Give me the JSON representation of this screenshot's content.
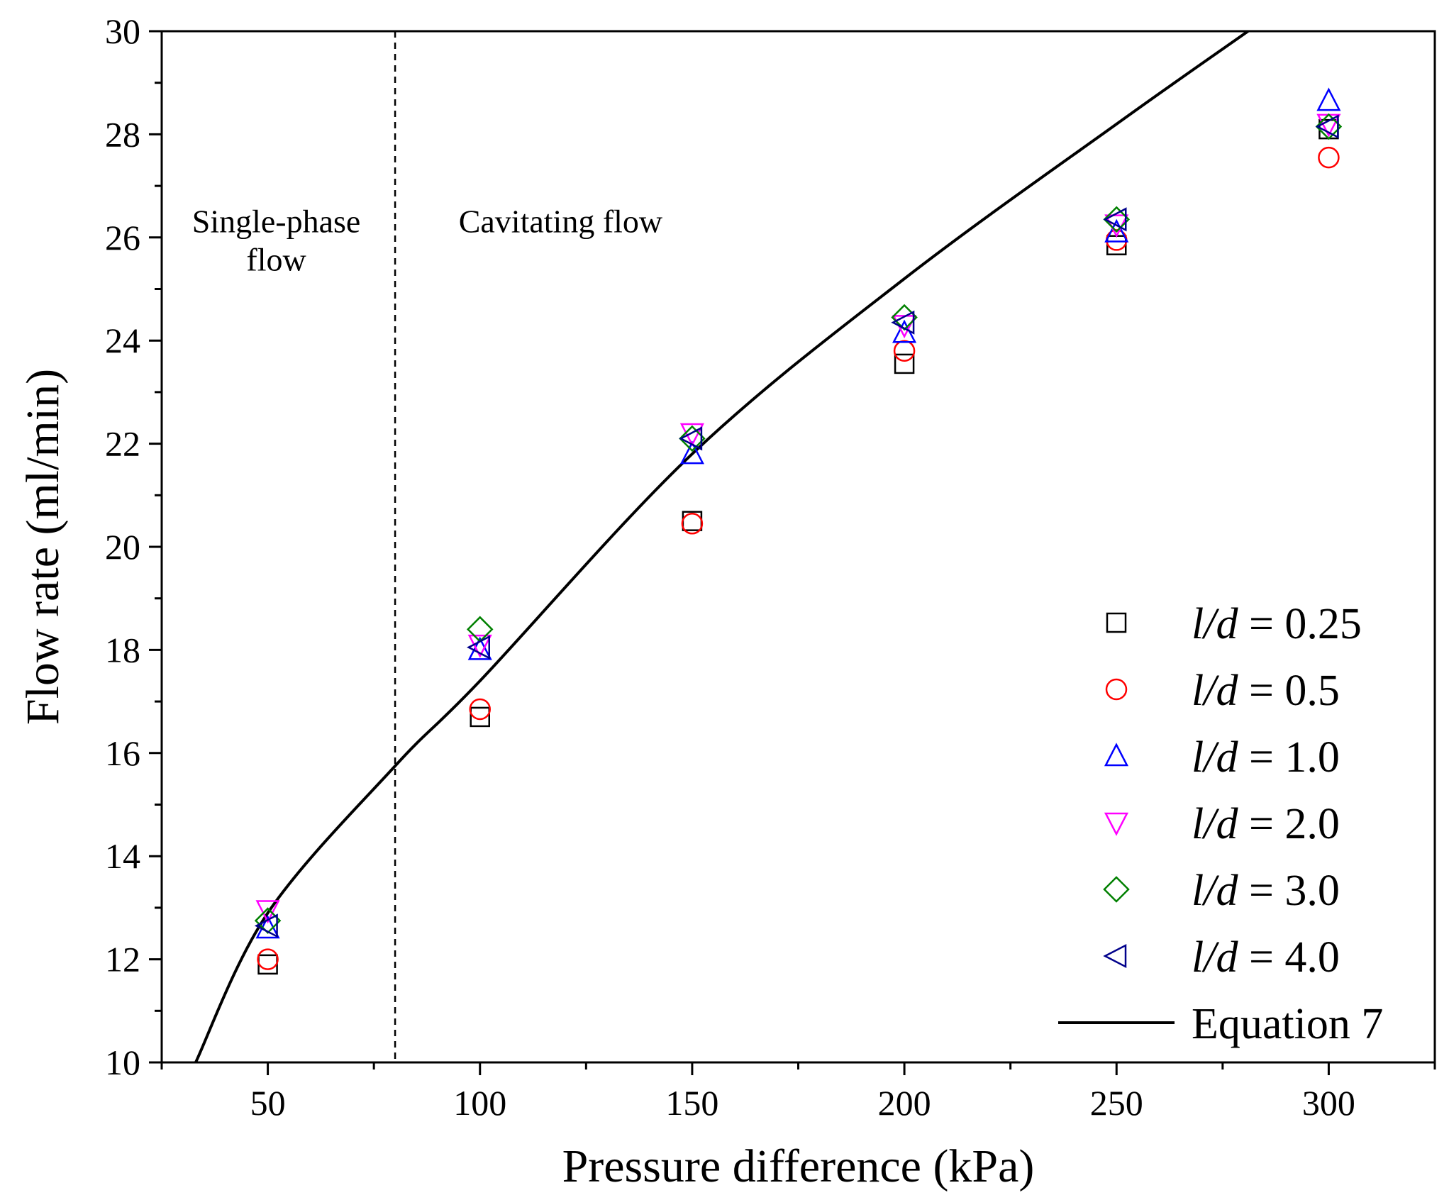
{
  "chart_data": {
    "type": "scatter",
    "title": "",
    "xlabel": "Pressure difference (kPa)",
    "ylabel": "Flow rate (ml/min)",
    "xlim": [
      25,
      325
    ],
    "ylim": [
      10,
      30
    ],
    "xticks": [
      50,
      100,
      150,
      200,
      250,
      300
    ],
    "yticks": [
      10,
      12,
      14,
      16,
      18,
      20,
      22,
      24,
      26,
      28,
      30
    ],
    "x_minor_ticks": [
      25,
      75,
      125,
      175,
      225,
      275,
      325
    ],
    "y_minor_ticks": [
      11,
      13,
      15,
      17,
      19,
      21,
      23,
      25,
      27,
      29
    ],
    "grid": false,
    "legend_position": "bottom-right",
    "divider": {
      "x": 80,
      "style": "dashed"
    },
    "annotations": [
      {
        "id": "single-phase",
        "lines": [
          "Single-phase",
          "flow"
        ],
        "x": 52,
        "y": 26.1
      },
      {
        "id": "cavitating",
        "lines": [
          "Cavitating flow"
        ],
        "x": 119,
        "y": 26.1
      }
    ],
    "series": [
      {
        "name": "0.25",
        "marker": "square",
        "color": "#000000",
        "x": [
          50,
          100,
          150,
          200,
          250,
          300
        ],
        "y": [
          11.9,
          16.7,
          20.5,
          23.55,
          25.85,
          28.1
        ]
      },
      {
        "name": "0.5",
        "marker": "circle",
        "color": "#ff0000",
        "x": [
          50,
          100,
          150,
          200,
          250,
          300
        ],
        "y": [
          12.0,
          16.85,
          20.45,
          23.8,
          25.95,
          27.55
        ]
      },
      {
        "name": "1.0",
        "marker": "triangle-up",
        "color": "#0000ff",
        "x": [
          50,
          100,
          150,
          200,
          250,
          300
        ],
        "y": [
          12.6,
          18.0,
          21.8,
          24.15,
          26.1,
          28.65
        ]
      },
      {
        "name": "2.0",
        "marker": "triangle-down",
        "color": "#ff00ff",
        "x": [
          50,
          100,
          150,
          200,
          250,
          300
        ],
        "y": [
          12.95,
          18.1,
          22.2,
          24.3,
          26.25,
          28.2
        ]
      },
      {
        "name": "3.0",
        "marker": "diamond",
        "color": "#008000",
        "x": [
          50,
          100,
          150,
          200,
          250,
          300
        ],
        "y": [
          12.75,
          18.4,
          22.1,
          24.45,
          26.35,
          28.15
        ]
      },
      {
        "name": "4.0",
        "marker": "triangle-left",
        "color": "#00008b",
        "x": [
          50,
          100,
          150,
          200,
          250,
          300
        ],
        "y": [
          12.65,
          18.05,
          22.1,
          24.35,
          26.35,
          28.15
        ]
      }
    ],
    "line_series": {
      "name": "Equation 7",
      "color": "#000000",
      "x": [
        33,
        50,
        80,
        100,
        150,
        200,
        250,
        281
      ],
      "y": [
        10.0,
        12.9,
        15.75,
        17.4,
        21.8,
        25.2,
        28.2,
        30.0
      ]
    },
    "legend": {
      "prefix": "l/d",
      "equals": " = ",
      "line_label": "Equation 7"
    }
  }
}
